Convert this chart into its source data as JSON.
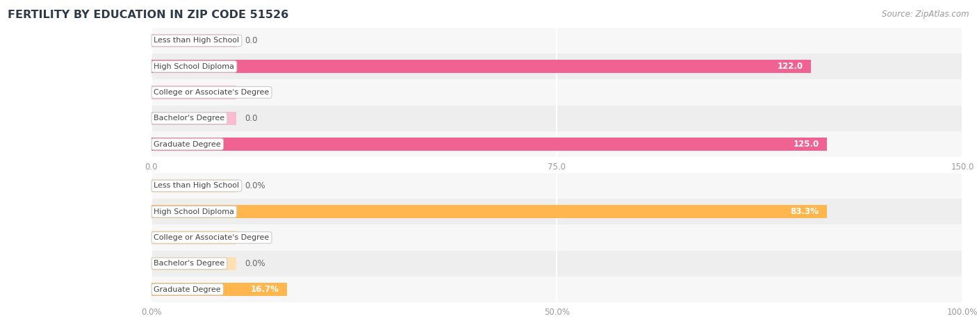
{
  "title": "FERTILITY BY EDUCATION IN ZIP CODE 51526",
  "source": "Source: ZipAtlas.com",
  "categories": [
    "Less than High School",
    "High School Diploma",
    "College or Associate's Degree",
    "Bachelor's Degree",
    "Graduate Degree"
  ],
  "pink_values": [
    0.0,
    122.0,
    0.0,
    0.0,
    125.0
  ],
  "pink_xlim_max": 150,
  "pink_xticks": [
    0.0,
    75.0,
    150.0
  ],
  "orange_values": [
    0.0,
    83.3,
    0.0,
    0.0,
    16.7
  ],
  "orange_xlim_max": 100,
  "orange_xticks": [
    0.0,
    50.0,
    100.0
  ],
  "orange_xticklabels": [
    "0.0%",
    "50.0%",
    "100.0%"
  ],
  "pink_main_color": "#f06292",
  "pink_zero_color": "#f8bbd0",
  "orange_main_color": "#ffb74d",
  "orange_zero_color": "#ffe0b2",
  "bar_height": 0.52,
  "row_even_color": "#f7f7f7",
  "row_odd_color": "#eeeeee",
  "title_color": "#2d3a4a",
  "source_color": "#999999",
  "label_text_color": "#444444",
  "value_label_color_inside": "#ffffff",
  "value_label_color_outside": "#666666",
  "grid_line_color": "#ffffff",
  "tick_label_color": "#999999"
}
